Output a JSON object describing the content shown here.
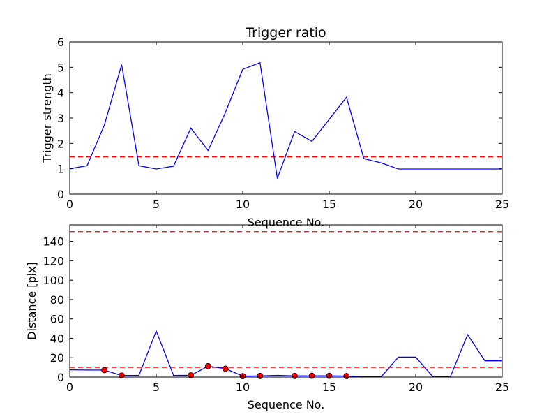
{
  "chart_data": [
    {
      "type": "line",
      "title": "Trigger ratio",
      "xlabel": "Sequence No.",
      "ylabel": "Trigger strength",
      "xlim": [
        0,
        25
      ],
      "ylim": [
        0,
        6
      ],
      "xticks": [
        0,
        5,
        10,
        15,
        20,
        25
      ],
      "yticks": [
        0,
        1,
        2,
        3,
        4,
        5,
        6
      ],
      "grid": false,
      "series": [
        {
          "color": "#0000ff",
          "style": "solid",
          "x": [
            0,
            1,
            2,
            3,
            4,
            5,
            6,
            7,
            8,
            9,
            10,
            11,
            12,
            13,
            14,
            15,
            16,
            17,
            18,
            19,
            20,
            21,
            22,
            23,
            24,
            25
          ],
          "values": [
            1.0,
            1.12,
            2.72,
            5.1,
            1.12,
            0.99,
            1.1,
            2.6,
            1.72,
            3.22,
            4.92,
            5.18,
            0.62,
            2.47,
            2.08,
            2.95,
            3.82,
            1.4,
            1.23,
            0.99,
            0.99,
            0.99,
            0.99,
            0.99,
            0.99,
            0.99
          ]
        }
      ],
      "hlines": [
        {
          "y": 1.47,
          "color": "#ff0000",
          "style": "dashed"
        }
      ]
    },
    {
      "type": "line",
      "title": "",
      "xlabel": "Sequence No.",
      "ylabel": "Distance [pix]",
      "xlim": [
        0,
        25
      ],
      "ylim": [
        0,
        157
      ],
      "xticks": [
        0,
        5,
        10,
        15,
        20,
        25
      ],
      "yticks": [
        0,
        20,
        40,
        60,
        80,
        100,
        120,
        140
      ],
      "grid": false,
      "series": [
        {
          "color": "#0000ff",
          "style": "solid",
          "x": [
            0,
            1,
            2,
            3,
            4,
            5,
            6,
            7,
            8,
            9,
            10,
            11,
            12,
            13,
            14,
            15,
            16,
            17,
            18,
            19,
            20,
            21,
            22,
            23,
            24,
            25
          ],
          "values": [
            7.5,
            7.3,
            7.2,
            1.6,
            1.8,
            47.5,
            1.7,
            1.8,
            11.3,
            8.7,
            1.0,
            1.2,
            1.8,
            1.2,
            1.3,
            1.3,
            1.1,
            0.2,
            0.3,
            20.6,
            20.6,
            0.2,
            0.3,
            43.8,
            16.8,
            16.8
          ]
        }
      ],
      "markers": {
        "color": "#ff0000",
        "x": [
          2,
          3,
          7,
          8,
          9,
          10,
          11,
          13,
          14,
          15,
          16
        ],
        "values": [
          7.2,
          1.6,
          1.8,
          11.3,
          8.7,
          1.0,
          1.2,
          1.2,
          1.3,
          1.3,
          1.1
        ]
      },
      "hlines": [
        {
          "y": 150,
          "color": "#ff0000",
          "style": "dashed"
        },
        {
          "y": 10,
          "color": "#ff0000",
          "style": "dashed"
        }
      ]
    }
  ]
}
